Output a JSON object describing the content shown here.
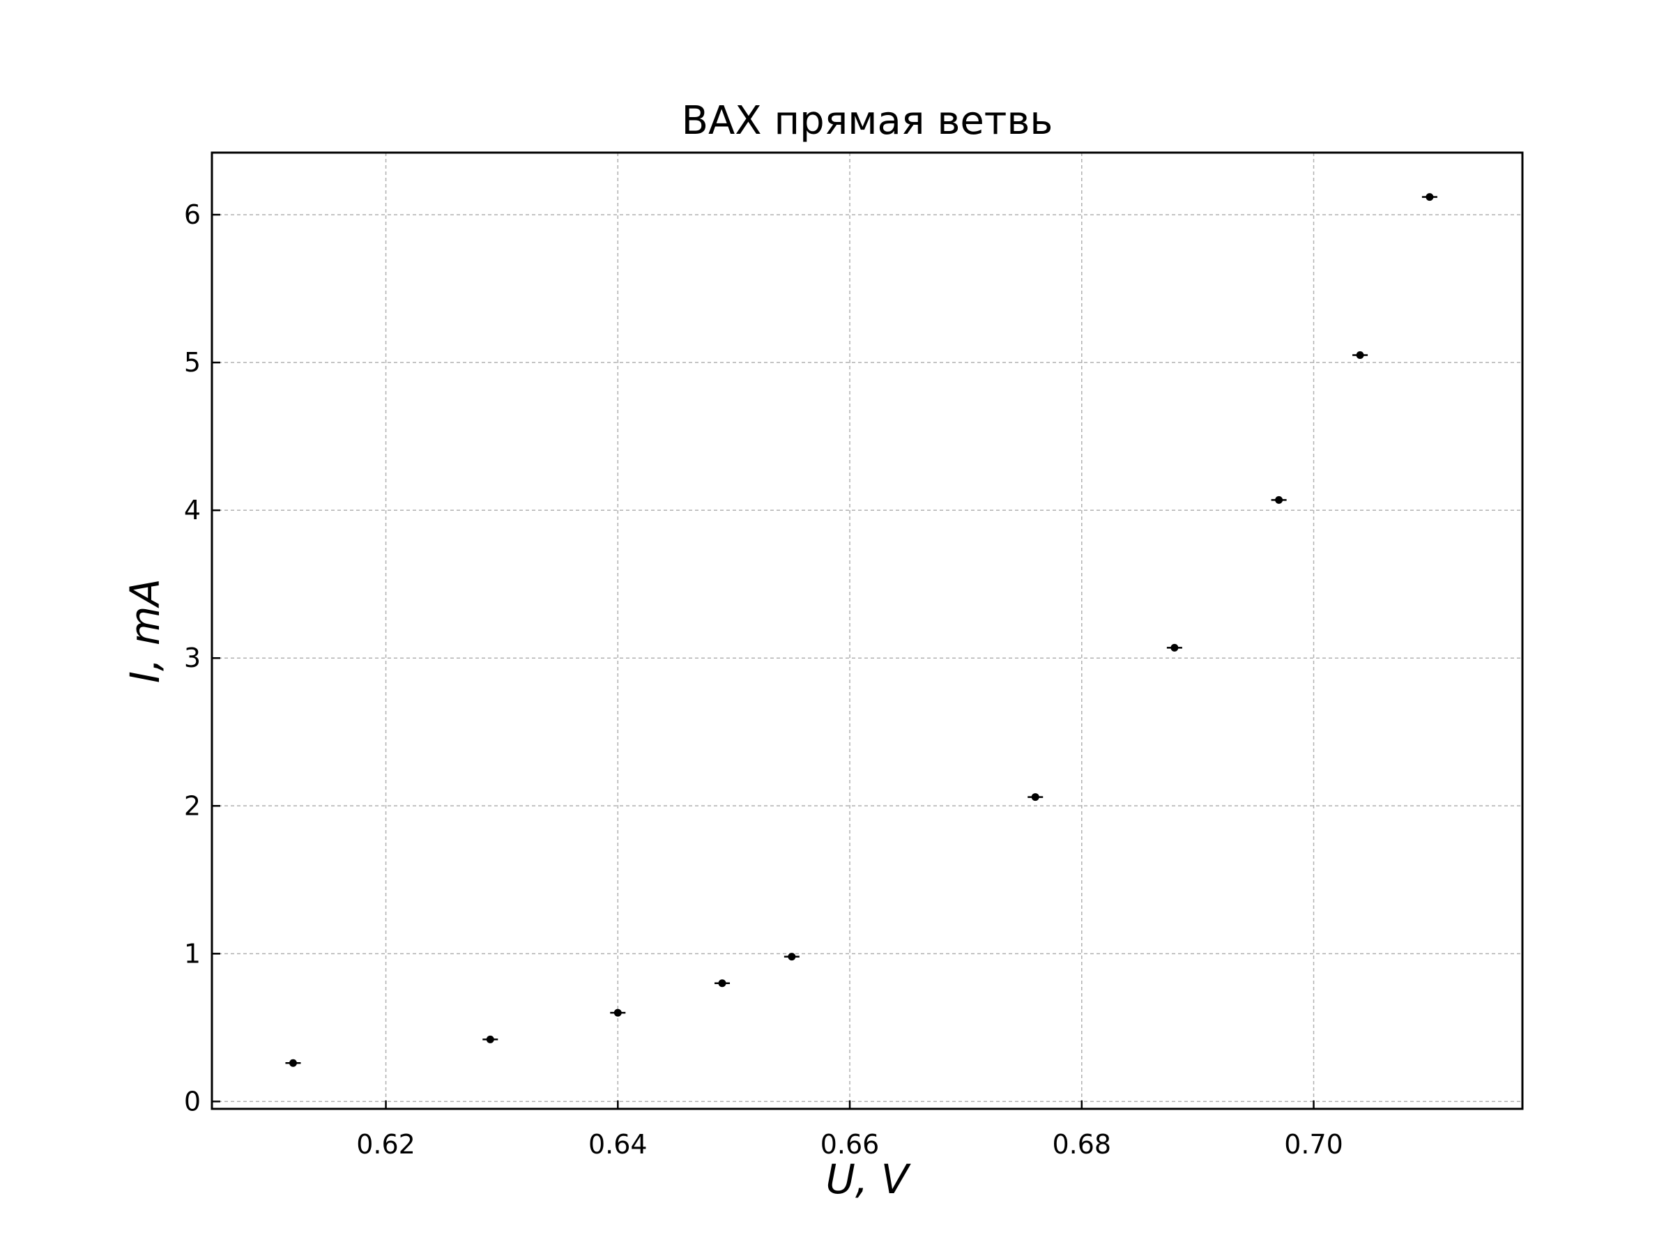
{
  "chart_data": {
    "type": "scatter",
    "title": "ВАХ прямая ветвь",
    "xlabel": "U, V",
    "ylabel": "I, mA",
    "xlim": [
      0.605,
      0.718
    ],
    "ylim": [
      -0.05,
      6.42
    ],
    "xticks": [
      0.62,
      0.64,
      0.66,
      0.68,
      0.7
    ],
    "xtick_labels": [
      "0.62",
      "0.64",
      "0.66",
      "0.68",
      "0.70"
    ],
    "yticks": [
      0,
      1,
      2,
      3,
      4,
      5,
      6
    ],
    "ytick_labels": [
      "0",
      "1",
      "2",
      "3",
      "4",
      "5",
      "6"
    ],
    "grid": true,
    "marker_color": "#000000",
    "series": [
      {
        "x": [
          0.612,
          0.629,
          0.64,
          0.649,
          0.655,
          0.676,
          0.688,
          0.697,
          0.704,
          0.71
        ],
        "y": [
          0.26,
          0.42,
          0.6,
          0.8,
          0.98,
          2.06,
          3.07,
          4.07,
          5.05,
          6.12
        ]
      }
    ]
  }
}
